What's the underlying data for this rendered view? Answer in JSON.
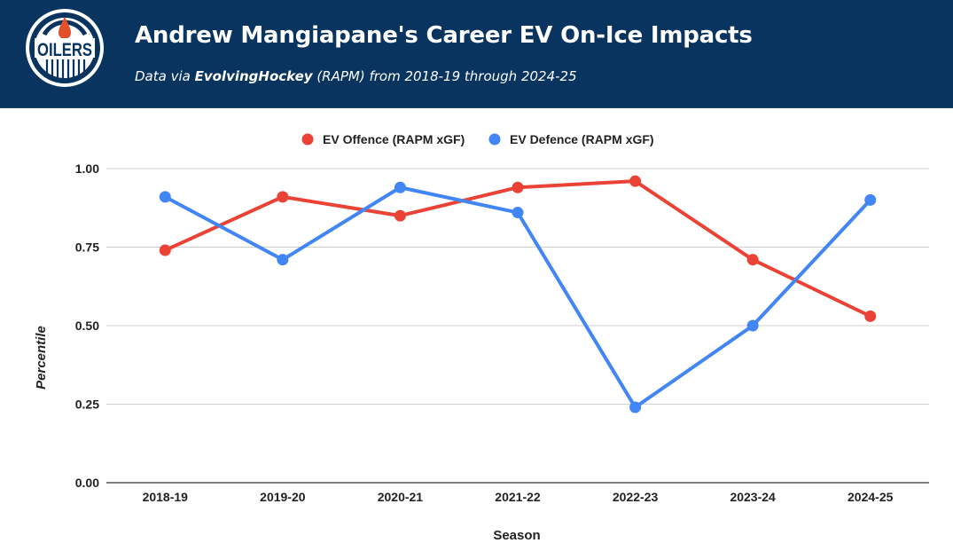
{
  "header": {
    "title": "Andrew Mangiapane's Career EV On-Ice Impacts",
    "subtitle_prefix": "Data via ",
    "subtitle_source": "EvolvingHockey",
    "subtitle_suffix": " (RAPM) from 2018-19 through 2024-25",
    "logo": {
      "icon": "oilers-logo",
      "text": "OILERS",
      "navy": "#08345f",
      "orange": "#e0502a"
    },
    "background": "#08345f"
  },
  "chart_data": {
    "type": "line",
    "title": "Andrew Mangiapane's Career EV On-Ice Impacts",
    "subtitle": "Data via EvolvingHockey (RAPM) from 2018-19 through 2024-25",
    "xlabel": "Season",
    "ylabel": "Percentile",
    "categories": [
      "2018-19",
      "2019-20",
      "2020-21",
      "2021-22",
      "2022-23",
      "2023-24",
      "2024-25"
    ],
    "ylim": [
      0,
      1
    ],
    "yticks": [
      0,
      0.25,
      0.5,
      0.75,
      1.0
    ],
    "ytick_labels": [
      "0.00",
      "0.25",
      "0.50",
      "0.75",
      "1.00"
    ],
    "grid": true,
    "legend_position": "top-center",
    "series": [
      {
        "name": "EV Offence (RAPM xGF)",
        "color": "#ea4335",
        "values": [
          0.74,
          0.91,
          0.85,
          0.94,
          0.96,
          0.71,
          0.53
        ]
      },
      {
        "name": "EV Defence (RAPM xGF)",
        "color": "#4285f4",
        "values": [
          0.91,
          0.71,
          0.94,
          0.86,
          0.24,
          0.5,
          0.9
        ]
      }
    ]
  }
}
